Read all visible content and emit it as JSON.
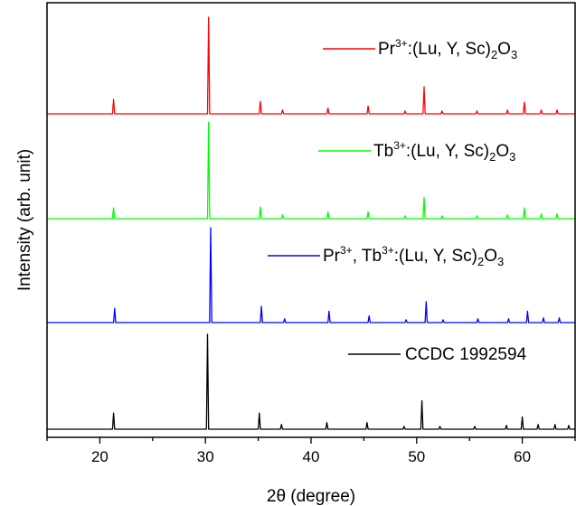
{
  "chart_data": {
    "type": "line",
    "title": "",
    "xlabel": "2θ (degree)",
    "ylabel": "Intensity (arb. unit)",
    "xlim": [
      15,
      65
    ],
    "x_ticks": [
      20,
      30,
      40,
      50,
      60
    ],
    "y_ticks_shown": false,
    "grid": false,
    "legend_placement": "top-right (one label per trace)",
    "series": [
      {
        "name": "Pr3+:(Lu, Y, Sc)2O3",
        "color": "#ff0000",
        "peaks": [
          {
            "x": 21.3,
            "y": 0.15
          },
          {
            "x": 30.3,
            "y": 1.0
          },
          {
            "x": 35.2,
            "y": 0.13
          },
          {
            "x": 37.3,
            "y": 0.04
          },
          {
            "x": 41.6,
            "y": 0.06
          },
          {
            "x": 45.4,
            "y": 0.08
          },
          {
            "x": 48.9,
            "y": 0.03
          },
          {
            "x": 50.7,
            "y": 0.28
          },
          {
            "x": 52.4,
            "y": 0.03
          },
          {
            "x": 55.7,
            "y": 0.03
          },
          {
            "x": 58.6,
            "y": 0.04
          },
          {
            "x": 60.2,
            "y": 0.12
          },
          {
            "x": 61.8,
            "y": 0.04
          },
          {
            "x": 63.3,
            "y": 0.04
          }
        ]
      },
      {
        "name": "Tb3+:(Lu, Y, Sc)2O3",
        "color": "#00ff00",
        "peaks": [
          {
            "x": 21.3,
            "y": 0.11
          },
          {
            "x": 30.3,
            "y": 1.0
          },
          {
            "x": 35.2,
            "y": 0.12
          },
          {
            "x": 37.3,
            "y": 0.04
          },
          {
            "x": 41.6,
            "y": 0.07
          },
          {
            "x": 45.4,
            "y": 0.07
          },
          {
            "x": 48.9,
            "y": 0.03
          },
          {
            "x": 50.7,
            "y": 0.22
          },
          {
            "x": 52.4,
            "y": 0.03
          },
          {
            "x": 55.7,
            "y": 0.03
          },
          {
            "x": 58.6,
            "y": 0.04
          },
          {
            "x": 60.2,
            "y": 0.11
          },
          {
            "x": 61.8,
            "y": 0.05
          },
          {
            "x": 63.3,
            "y": 0.05
          }
        ]
      },
      {
        "name": "Pr3+, Tb3+:(Lu, Y, Sc)2O3",
        "color": "#0000ff",
        "peaks": [
          {
            "x": 21.4,
            "y": 0.15
          },
          {
            "x": 30.5,
            "y": 1.0
          },
          {
            "x": 35.3,
            "y": 0.17
          },
          {
            "x": 37.5,
            "y": 0.04
          },
          {
            "x": 41.7,
            "y": 0.12
          },
          {
            "x": 45.5,
            "y": 0.07
          },
          {
            "x": 49.0,
            "y": 0.03
          },
          {
            "x": 50.9,
            "y": 0.22
          },
          {
            "x": 52.5,
            "y": 0.03
          },
          {
            "x": 55.8,
            "y": 0.04
          },
          {
            "x": 58.7,
            "y": 0.04
          },
          {
            "x": 60.5,
            "y": 0.12
          },
          {
            "x": 62.0,
            "y": 0.05
          },
          {
            "x": 63.5,
            "y": 0.05
          }
        ]
      },
      {
        "name": "CCDC 1992594",
        "color": "#000000",
        "peaks": [
          {
            "x": 21.3,
            "y": 0.17
          },
          {
            "x": 30.2,
            "y": 1.0
          },
          {
            "x": 35.1,
            "y": 0.17
          },
          {
            "x": 37.2,
            "y": 0.05
          },
          {
            "x": 41.5,
            "y": 0.07
          },
          {
            "x": 45.3,
            "y": 0.07
          },
          {
            "x": 48.8,
            "y": 0.03
          },
          {
            "x": 50.5,
            "y": 0.3
          },
          {
            "x": 52.2,
            "y": 0.03
          },
          {
            "x": 55.5,
            "y": 0.03
          },
          {
            "x": 58.5,
            "y": 0.04
          },
          {
            "x": 60.0,
            "y": 0.13
          },
          {
            "x": 61.5,
            "y": 0.05
          },
          {
            "x": 63.1,
            "y": 0.05
          },
          {
            "x": 64.4,
            "y": 0.04
          }
        ]
      }
    ]
  },
  "legend": [
    {
      "pre": "Pr",
      "sup": "3+",
      "mid": ":(Lu, Y, Sc)",
      "sub": "2",
      "post": "O",
      "sub2": "3",
      "color": "#ff0000"
    },
    {
      "pre": "Tb",
      "sup": "3+",
      "mid": ":(Lu, Y, Sc)",
      "sub": "2",
      "post": "O",
      "sub2": "3",
      "color": "#00ff00"
    },
    {
      "pre": "Pr",
      "sup": "3+",
      "mid": ", Tb",
      "sup2": "3+",
      "mid2": ":(Lu, Y, Sc)",
      "sub": "2",
      "post": "O",
      "sub2": "3",
      "color": "#0000ff"
    },
    {
      "pre": "CCDC 1992594",
      "color": "#000000"
    }
  ]
}
